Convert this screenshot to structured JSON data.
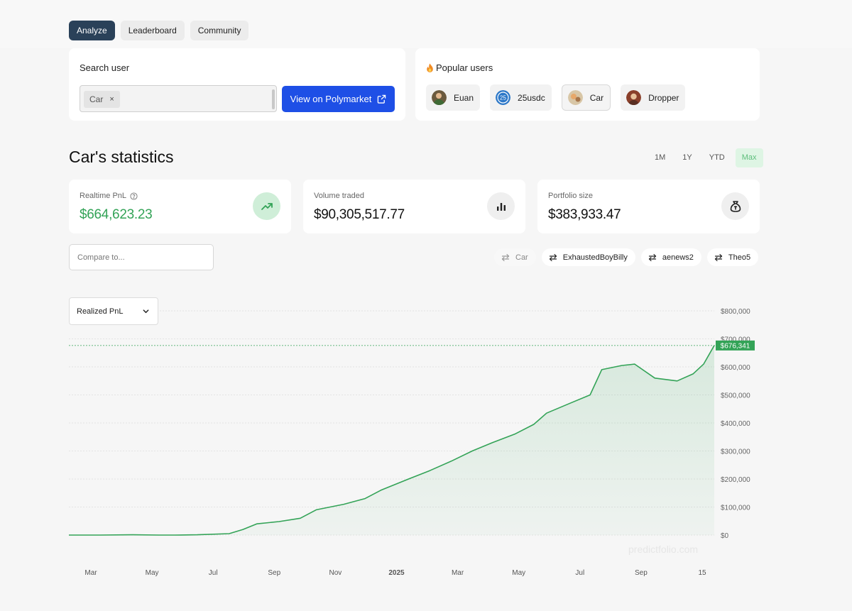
{
  "tabs": [
    {
      "label": "Analyze",
      "active": true
    },
    {
      "label": "Leaderboard",
      "active": false
    },
    {
      "label": "Community",
      "active": false
    }
  ],
  "search": {
    "label": "Search user",
    "chip": "Car",
    "button": "View on Polymarket"
  },
  "popular": {
    "label": "Popular users",
    "users": [
      "Euan",
      "25usdc",
      "Car",
      "Dropper"
    ]
  },
  "title": "Car's statistics",
  "ranges": [
    "1M",
    "1Y",
    "YTD",
    "Max"
  ],
  "active_range": "Max",
  "stats": {
    "pnl": {
      "label": "Realtime PnL",
      "value": "$664,623.23"
    },
    "volume": {
      "label": "Volume traded",
      "value": "$90,305,517.77"
    },
    "portfolio": {
      "label": "Portfolio size",
      "value": "$383,933.47"
    }
  },
  "compare": {
    "placeholder": "Compare to...",
    "chips": [
      "Car",
      "ExhaustedBoyBilly",
      "aenews2",
      "Theo5"
    ]
  },
  "metric_select": "Realized PnL",
  "colors": {
    "accent": "#1e4fe6",
    "positive": "#33a357",
    "tab_active": "#2a4159"
  },
  "chart_data": {
    "type": "area",
    "series": [
      {
        "x": [
          "2024-02-15",
          "2024-03-15",
          "2024-04-15",
          "2024-05-10",
          "2024-05-25",
          "2024-06-15",
          "2024-07-15",
          "2024-07-28",
          "2024-08-10",
          "2024-08-31",
          "2024-09-20",
          "2024-10-05",
          "2024-10-31",
          "2024-11-20",
          "2024-12-05",
          "2024-12-31",
          "2025-01-20",
          "2025-02-10",
          "2025-03-01",
          "2025-03-20",
          "2025-04-10",
          "2025-04-28",
          "2025-05-10",
          "2025-06-01",
          "2025-06-20",
          "2025-07-01",
          "2025-07-20",
          "2025-08-01",
          "2025-08-20",
          "2025-09-10",
          "2025-09-25",
          "2025-10-05",
          "2025-10-15"
        ],
        "values": [
          0,
          0,
          1000,
          0,
          0,
          1000,
          5000,
          20000,
          40000,
          48000,
          60000,
          90000,
          110000,
          130000,
          160000,
          200000,
          230000,
          265000,
          300000,
          330000,
          360000,
          395000,
          435000,
          470000,
          500000,
          590000,
          605000,
          610000,
          560000,
          550000,
          575000,
          610000,
          676341
        ]
      }
    ],
    "x_ticks": [
      "Mar",
      "May",
      "Jul",
      "Sep",
      "Nov",
      "2025",
      "Mar",
      "May",
      "Jul",
      "Sep",
      "15"
    ],
    "y_ticks": [
      "$800,000",
      "$700,000",
      "$600,000",
      "$500,000",
      "$400,000",
      "$300,000",
      "$200,000",
      "$100,000",
      "$0"
    ],
    "ylim": [
      0,
      800000
    ],
    "current_value_label": "$676,341",
    "current_value": 676341,
    "watermark": "predictfolio.com",
    "grid": true
  }
}
